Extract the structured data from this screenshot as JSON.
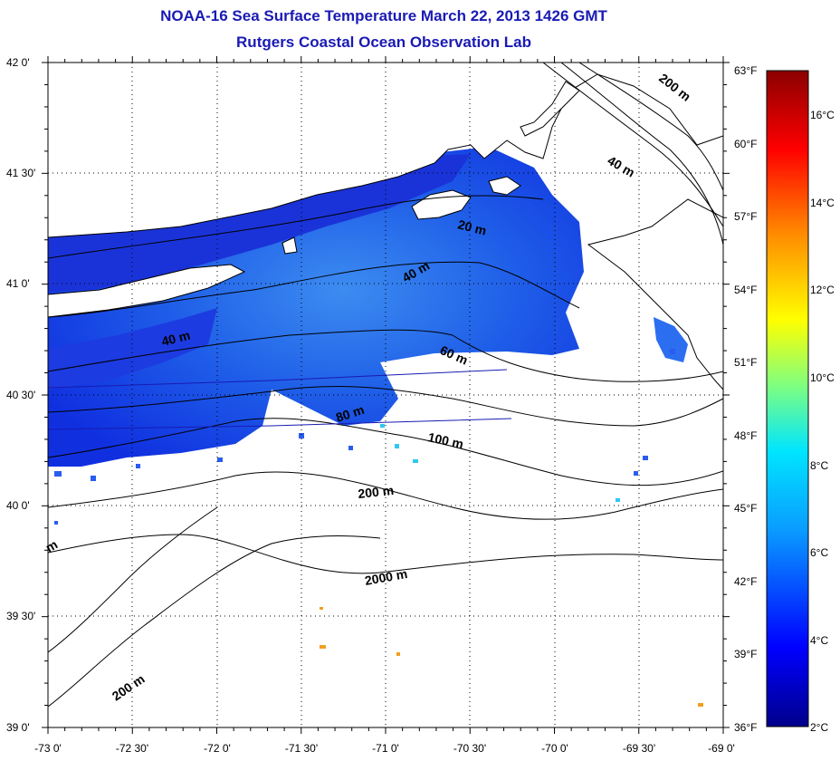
{
  "header": {
    "title": "NOAA-16 Sea Surface Temperature March 22, 2013 1426 GMT",
    "subtitle": "Rutgers Coastal Ocean Observation Lab"
  },
  "map": {
    "lon_labels": [
      "-73 0'",
      "-72 30'",
      "-72 0'",
      "-71 30'",
      "-71 0'",
      "-70 30'",
      "-70 0'",
      "-69 30'",
      "-69 0'"
    ],
    "lat_labels": [
      "42 0'",
      "41 30'",
      "41 0'",
      "40 30'",
      "40 0'",
      "39 30'",
      "39 0'"
    ],
    "lon_range": [
      -73,
      -69
    ],
    "lat_range": [
      39,
      42
    ],
    "contour_labels": [
      "200 m",
      "40 m",
      "20 m",
      "40 m",
      "40 m",
      "60 m",
      "80 m",
      "100 m",
      "200 m",
      "2000 m",
      "200 m",
      "m"
    ]
  },
  "colorbar": {
    "fahrenheit_labels": [
      "63°F",
      "60°F",
      "57°F",
      "54°F",
      "51°F",
      "48°F",
      "45°F",
      "42°F",
      "39°F",
      "36°F"
    ],
    "celsius_labels": [
      "16°C",
      "14°C",
      "12°C",
      "10°C",
      "8°C",
      "6°C",
      "4°C",
      "2°C"
    ],
    "colors": {
      "low": "#00008b",
      "blue": "#0000ff",
      "cyan": "#00e5ff",
      "green": "#7fff7f",
      "yellow": "#ffff00",
      "orange": "#ff8c00",
      "red": "#ff0000",
      "high": "#8b0000"
    }
  }
}
